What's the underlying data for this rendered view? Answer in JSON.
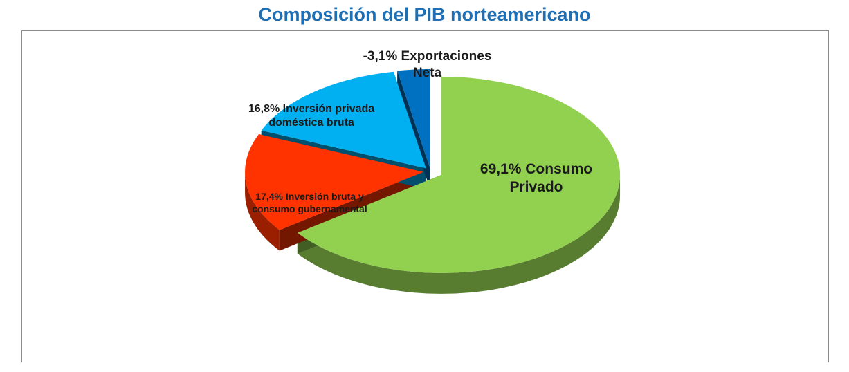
{
  "chart_data": {
    "type": "pie",
    "title": "Composición del PIB norteamericano",
    "slices": [
      {
        "label": "69,1% Consumo Privado",
        "value": 69.1,
        "color": "#92d050"
      },
      {
        "label": "17,4% Inversión bruta y consumo gubernamental",
        "value": 17.4,
        "color": "#ff3300"
      },
      {
        "label": "16,8% Inversión privada doméstica bruta",
        "value": 16.8,
        "color": "#00b0f0"
      },
      {
        "label": "-3,1% Exportaciones Neta",
        "value": -3.1,
        "color": "#0070c0"
      }
    ]
  },
  "labels": {
    "consumo_1": "69,1% Consumo",
    "consumo_2": "Privado",
    "inversion_bruta_1": "17,4% Inversión bruta y",
    "inversion_bruta_2": "consumo gubernamental",
    "inversion_privada_1": "16,8% Inversión privada",
    "inversion_privada_2": "doméstica bruta",
    "exportaciones_1": "-3,1% Exportaciones",
    "exportaciones_2": "Neta"
  }
}
